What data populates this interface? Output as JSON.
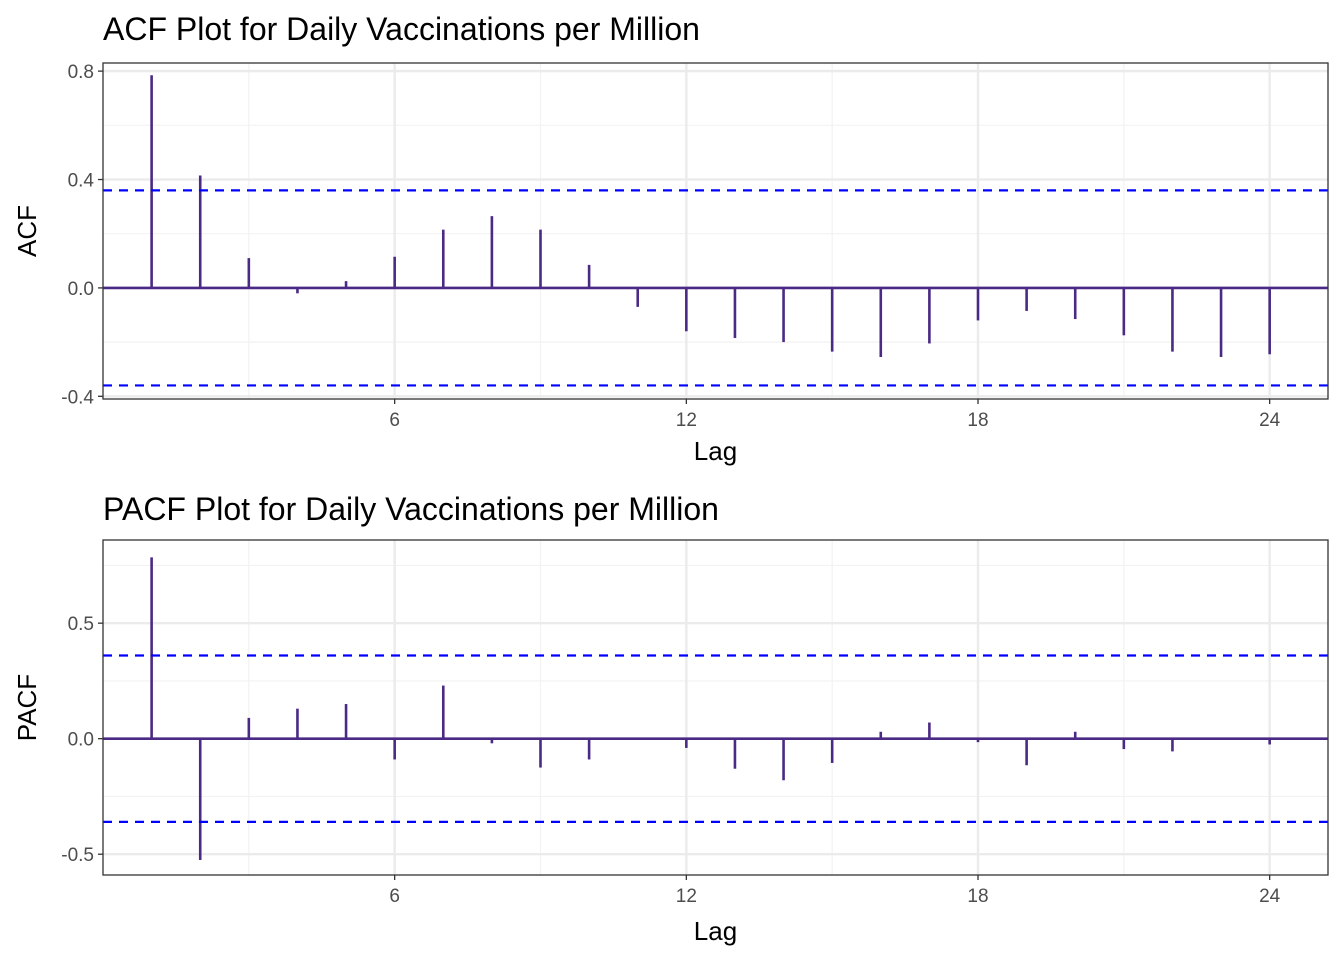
{
  "colors": {
    "bar": "#4b2a85",
    "zero_line": "#4b2a85",
    "confidence_band": "#0000ff",
    "grid_major": "#ebebeb",
    "grid_minor": "#f2f2f2",
    "panel_border": "#333333",
    "tick_text": "#4d4d4d"
  },
  "chart_data": [
    {
      "type": "bar",
      "subtype": "correlogram",
      "title": "ACF Plot for Daily Vaccinations per Million",
      "xlabel": "Lag",
      "ylabel": "ACF",
      "xlim": [
        0,
        25.2
      ],
      "ylim": [
        -0.41,
        0.83
      ],
      "x_ticks": [
        6,
        12,
        18,
        24
      ],
      "y_ticks": [
        -0.4,
        0.0,
        0.4,
        0.8
      ],
      "y_tick_labels": [
        "-0.4",
        "0.0",
        "0.4",
        "0.8"
      ],
      "grid": true,
      "confidence_bound": 0.36,
      "lags": [
        1,
        2,
        3,
        4,
        5,
        6,
        7,
        8,
        9,
        10,
        11,
        12,
        13,
        14,
        15,
        16,
        17,
        18,
        19,
        20,
        21,
        22,
        23,
        24
      ],
      "values": [
        0.785,
        0.415,
        0.11,
        -0.02,
        0.025,
        0.115,
        0.215,
        0.265,
        0.215,
        0.085,
        -0.07,
        -0.16,
        -0.185,
        -0.2,
        -0.235,
        -0.255,
        -0.205,
        -0.12,
        -0.085,
        -0.115,
        -0.175,
        -0.235,
        -0.255,
        -0.245
      ]
    },
    {
      "type": "bar",
      "subtype": "correlogram",
      "title": "PACF Plot for Daily Vaccinations per Million",
      "xlabel": "Lag",
      "ylabel": "PACF",
      "xlim": [
        0,
        25.2
      ],
      "ylim": [
        -0.59,
        0.86
      ],
      "x_ticks": [
        6,
        12,
        18,
        24
      ],
      "y_ticks": [
        -0.5,
        0.0,
        0.5
      ],
      "y_tick_labels": [
        "-0.5",
        "0.0",
        "0.5"
      ],
      "grid": true,
      "confidence_bound": 0.36,
      "lags": [
        1,
        2,
        3,
        4,
        5,
        6,
        7,
        8,
        9,
        10,
        11,
        12,
        13,
        14,
        15,
        16,
        17,
        18,
        19,
        20,
        21,
        22,
        23,
        24
      ],
      "values": [
        0.785,
        -0.525,
        0.09,
        0.13,
        0.15,
        -0.09,
        0.23,
        -0.02,
        -0.125,
        -0.09,
        0.0,
        -0.04,
        -0.13,
        -0.18,
        -0.105,
        0.03,
        0.07,
        -0.015,
        -0.115,
        0.03,
        -0.045,
        -0.055,
        0.0,
        -0.025
      ]
    }
  ]
}
